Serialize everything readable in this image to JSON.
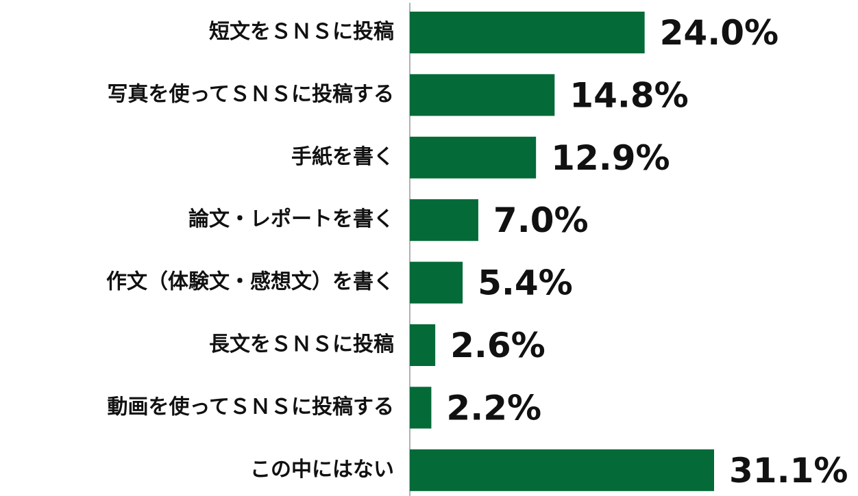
{
  "chart_data": {
    "type": "bar",
    "orientation": "horizontal",
    "categories": [
      "短文をＳＮＳに投稿",
      "写真を使ってＳＮＳに投稿する",
      "手紙を書く",
      "論文・レポートを書く",
      "作文（体験文・感想文）を書く",
      "長文をＳＮＳに投稿",
      "動画を使ってＳＮＳに投稿する",
      "この中にはない"
    ],
    "values": [
      24.0,
      14.8,
      12.9,
      7.0,
      5.4,
      2.6,
      2.2,
      31.1
    ],
    "value_labels": [
      "24.0%",
      "14.8%",
      "12.9%",
      "7.0%",
      "5.4%",
      "2.6%",
      "2.2%",
      "31.1%"
    ],
    "color": "#046a38"
  }
}
